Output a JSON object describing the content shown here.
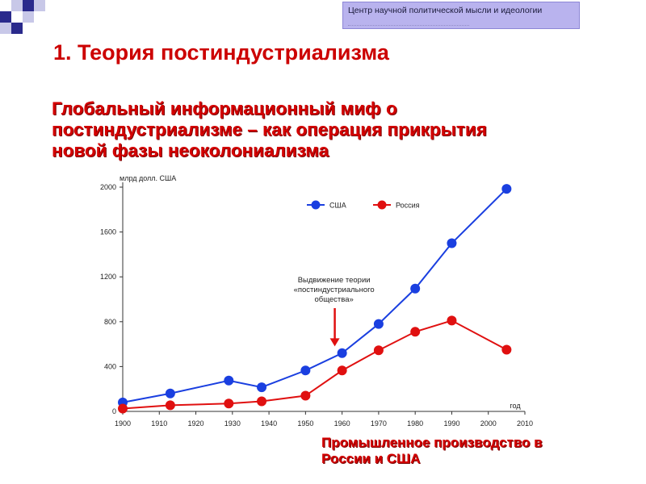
{
  "header": {
    "text": "Центр научной политической мысли и идеологии"
  },
  "slide": {
    "title": "1. Теория постиндустриализма",
    "subtitle_lines": [
      "Глобальный информационный миф о",
      "постиндустриализме – как операция прикрытия",
      "новой фазы неоколониализма"
    ],
    "caption_lines": [
      "Промышленное производство в",
      "России и США"
    ]
  },
  "colors": {
    "accent_red": "#d40000",
    "header_bg": "#b9b3ee",
    "usa": "#1a3fe0",
    "russia": "#e01010",
    "deco_squares": "#2a2a8c"
  },
  "chart_data": {
    "type": "line",
    "ylabel": "млрд долл. США",
    "xlabel": "год",
    "xlim": [
      1900,
      2010
    ],
    "ylim": [
      0,
      2000
    ],
    "xticks": [
      1900,
      1910,
      1920,
      1930,
      1940,
      1950,
      1960,
      1970,
      1980,
      1990,
      2000,
      2010
    ],
    "yticks": [
      0,
      400,
      800,
      1200,
      1600,
      2000
    ],
    "legend_position": "top",
    "series": [
      {
        "name": "США",
        "color": "#1a3fe0",
        "x": [
          1900,
          1913,
          1929,
          1938,
          1950,
          1960,
          1970,
          1980,
          1990,
          2005
        ],
        "y": [
          80,
          160,
          275,
          215,
          365,
          520,
          780,
          1095,
          1500,
          1985
        ]
      },
      {
        "name": "Россия",
        "color": "#e01010",
        "x": [
          1900,
          1913,
          1929,
          1938,
          1950,
          1960,
          1970,
          1980,
          1990,
          2005
        ],
        "y": [
          25,
          55,
          70,
          90,
          140,
          365,
          545,
          710,
          810,
          550
        ]
      }
    ],
    "annotation": {
      "lines": [
        "Выдвижение теории",
        "«постиндустриального",
        "общества»"
      ],
      "x": 1960,
      "arrow_to_y": 580
    }
  }
}
